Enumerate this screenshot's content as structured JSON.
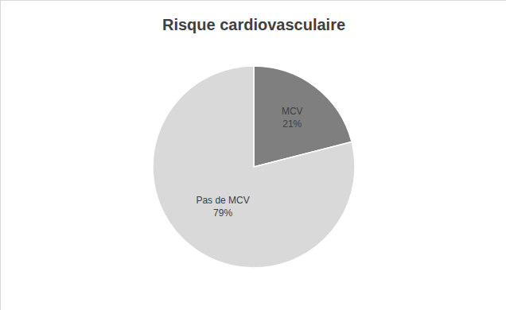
{
  "chart_data": {
    "type": "pie",
    "title": "Risque cardiovasculaire",
    "categories": [
      "MCV",
      "Pas de MCV"
    ],
    "values": [
      21,
      79
    ],
    "value_labels": [
      "21%",
      "79%"
    ],
    "colors": [
      "#7f7f7f",
      "#d9d9d9"
    ],
    "data_labels": true
  }
}
